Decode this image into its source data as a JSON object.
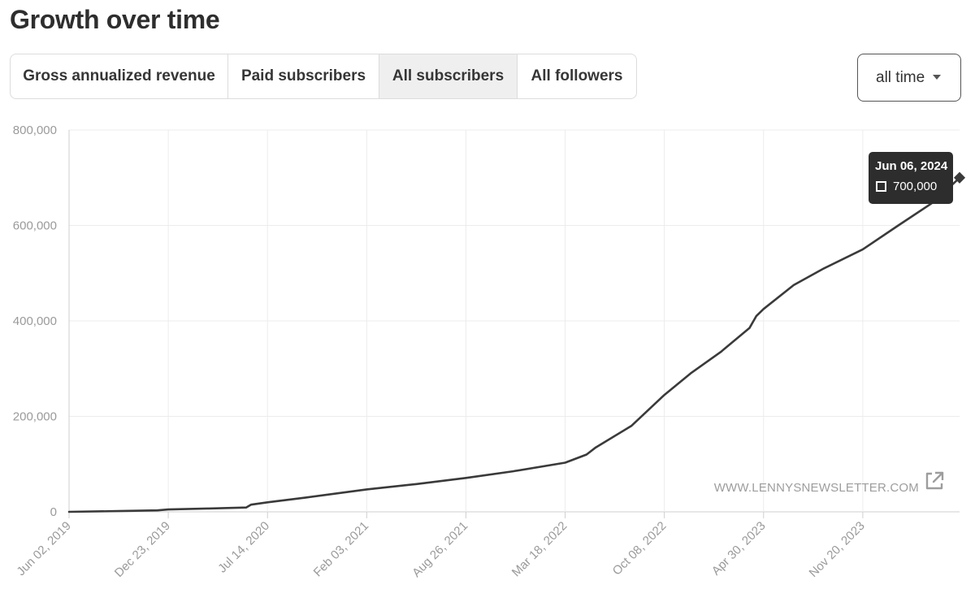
{
  "header": {
    "title": "Growth over time"
  },
  "tabs": [
    {
      "label": "Gross annualized revenue",
      "active": false
    },
    {
      "label": "Paid subscribers",
      "active": false
    },
    {
      "label": "All subscribers",
      "active": true
    },
    {
      "label": "All followers",
      "active": false
    }
  ],
  "range_select": {
    "value": "all time"
  },
  "watermark": {
    "text": "WWW.LENNYSNEWSLETTER.COM",
    "icon": "external-link-icon"
  },
  "tooltip": {
    "date": "Jun 06, 2024",
    "value": "700,000"
  },
  "colors": {
    "line": "#3a3a3a",
    "grid": "#ececec",
    "axis": "#cfcfcf",
    "tooltip_bg": "#2d2d2d",
    "active_tab_bg": "#efefef"
  },
  "chart_data": {
    "type": "line",
    "title": "",
    "xlabel": "",
    "ylabel": "",
    "ylim": [
      0,
      800000
    ],
    "y_ticks": [
      0,
      200000,
      400000,
      600000,
      800000
    ],
    "y_tick_labels": [
      "0",
      "200,000",
      "400,000",
      "600,000",
      "800,000"
    ],
    "x_ticks": [
      "2019-06-02",
      "2019-12-23",
      "2020-07-14",
      "2021-02-03",
      "2021-08-26",
      "2022-03-18",
      "2022-10-08",
      "2023-04-30",
      "2023-11-20"
    ],
    "x_tick_labels": [
      "Jun 02, 2019",
      "Dec 23, 2019",
      "Jul 14, 2020",
      "Feb 03, 2021",
      "Aug 26, 2021",
      "Mar 18, 2022",
      "Oct 08, 2022",
      "Apr 30, 2023",
      "Nov 20, 2023"
    ],
    "xlim": [
      "2019-06-02",
      "2024-06-06"
    ],
    "grid": true,
    "series": [
      {
        "values": [
          {
            "x": "2019-06-02",
            "y": 0
          },
          {
            "x": "2019-09-10",
            "y": 1500
          },
          {
            "x": "2019-12-01",
            "y": 3000
          },
          {
            "x": "2019-12-23",
            "y": 5000
          },
          {
            "x": "2020-03-15",
            "y": 7000
          },
          {
            "x": "2020-05-31",
            "y": 9000
          },
          {
            "x": "2020-06-10",
            "y": 15000
          },
          {
            "x": "2020-07-14",
            "y": 20000
          },
          {
            "x": "2020-10-01",
            "y": 30000
          },
          {
            "x": "2021-02-03",
            "y": 47000
          },
          {
            "x": "2021-05-15",
            "y": 58000
          },
          {
            "x": "2021-08-26",
            "y": 71000
          },
          {
            "x": "2021-12-01",
            "y": 85000
          },
          {
            "x": "2022-03-18",
            "y": 103000
          },
          {
            "x": "2022-05-01",
            "y": 120000
          },
          {
            "x": "2022-05-20",
            "y": 135000
          },
          {
            "x": "2022-08-01",
            "y": 180000
          },
          {
            "x": "2022-10-08",
            "y": 245000
          },
          {
            "x": "2022-12-01",
            "y": 290000
          },
          {
            "x": "2023-02-01",
            "y": 335000
          },
          {
            "x": "2023-04-01",
            "y": 385000
          },
          {
            "x": "2023-04-15",
            "y": 410000
          },
          {
            "x": "2023-04-30",
            "y": 425000
          },
          {
            "x": "2023-07-01",
            "y": 475000
          },
          {
            "x": "2023-09-01",
            "y": 510000
          },
          {
            "x": "2023-11-20",
            "y": 550000
          },
          {
            "x": "2024-02-01",
            "y": 600000
          },
          {
            "x": "2024-04-15",
            "y": 650000
          },
          {
            "x": "2024-06-06",
            "y": 700000
          }
        ]
      }
    ]
  }
}
